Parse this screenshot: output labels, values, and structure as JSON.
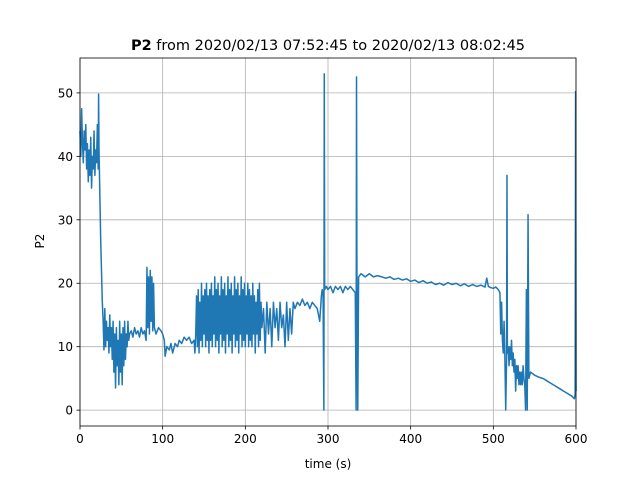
{
  "chart_data": {
    "type": "line",
    "title_bold": "P2",
    "title_rest": " from 2020/02/13 07:52:45 to 2020/02/13 08:02:45",
    "xlabel": "time (s)",
    "ylabel": "P2",
    "xlim": [
      0,
      600
    ],
    "ylim": [
      -2.5,
      55.5
    ],
    "xticks": [
      0,
      100,
      200,
      300,
      400,
      500,
      600
    ],
    "yticks": [
      0,
      10,
      20,
      30,
      40,
      50
    ],
    "grid": true,
    "line_color": "#1f77b4",
    "series": [
      {
        "points": [
          [
            0,
            44
          ],
          [
            1,
            40
          ],
          [
            2,
            47.5
          ],
          [
            3,
            42
          ],
          [
            4,
            39
          ],
          [
            5,
            44
          ],
          [
            6,
            41
          ],
          [
            7,
            45
          ],
          [
            8,
            38
          ],
          [
            9,
            42
          ],
          [
            10,
            36
          ],
          [
            11,
            41
          ],
          [
            12,
            37
          ],
          [
            13,
            43
          ],
          [
            14,
            35
          ],
          [
            15,
            40
          ],
          [
            16,
            38
          ],
          [
            17,
            44
          ],
          [
            18,
            37
          ],
          [
            19,
            41
          ],
          [
            20,
            39
          ],
          [
            21,
            45
          ],
          [
            22,
            38
          ],
          [
            22.5,
            49.8
          ],
          [
            23,
            41
          ],
          [
            24,
            34
          ],
          [
            25,
            27
          ],
          [
            26,
            22
          ],
          [
            27,
            17
          ],
          [
            28,
            14
          ],
          [
            29,
            9.5
          ],
          [
            30,
            16
          ],
          [
            31,
            10
          ],
          [
            32,
            14
          ],
          [
            33,
            11
          ],
          [
            34,
            13
          ],
          [
            35,
            9
          ],
          [
            36,
            15
          ],
          [
            37,
            10
          ],
          [
            38,
            13
          ],
          [
            39,
            8
          ],
          [
            40,
            14
          ],
          [
            41,
            6
          ],
          [
            42,
            12
          ],
          [
            43,
            3.5
          ],
          [
            44,
            13
          ],
          [
            45,
            7
          ],
          [
            46,
            11
          ],
          [
            47,
            4
          ],
          [
            48,
            14
          ],
          [
            49,
            6
          ],
          [
            50,
            12
          ],
          [
            51,
            4
          ],
          [
            52,
            13
          ],
          [
            53,
            7
          ],
          [
            54,
            14
          ],
          [
            55,
            8
          ],
          [
            56,
            12
          ],
          [
            57,
            10
          ],
          [
            58,
            14
          ],
          [
            59,
            11
          ],
          [
            60,
            12
          ],
          [
            62,
            12.5
          ],
          [
            64,
            11.5
          ],
          [
            66,
            13
          ],
          [
            68,
            12
          ],
          [
            70,
            12.5
          ],
          [
            72,
            11.5
          ],
          [
            74,
            13
          ],
          [
            76,
            12
          ],
          [
            78,
            12.5
          ],
          [
            80,
            11
          ],
          [
            81,
            22.5
          ],
          [
            82,
            13
          ],
          [
            83,
            21
          ],
          [
            84,
            12
          ],
          [
            85,
            22
          ],
          [
            86,
            14
          ],
          [
            87,
            21
          ],
          [
            88,
            12.5
          ],
          [
            89,
            20
          ],
          [
            90,
            13
          ],
          [
            92,
            12
          ],
          [
            95,
            13
          ],
          [
            98,
            12.5
          ],
          [
            100,
            12
          ],
          [
            102,
            11
          ],
          [
            103,
            8.5
          ],
          [
            105,
            10
          ],
          [
            108,
            9.5
          ],
          [
            110,
            10.5
          ],
          [
            112,
            9
          ],
          [
            115,
            10.5
          ],
          [
            118,
            10
          ],
          [
            120,
            11
          ],
          [
            123,
            10.5
          ],
          [
            126,
            11.5
          ],
          [
            129,
            11
          ],
          [
            132,
            11.5
          ],
          [
            135,
            10.5
          ],
          [
            138,
            11
          ],
          [
            139,
            9
          ],
          [
            140,
            12
          ],
          [
            141,
            18
          ],
          [
            142,
            10
          ],
          [
            143,
            19
          ],
          [
            144,
            9
          ],
          [
            145,
            17
          ],
          [
            146,
            11
          ],
          [
            147,
            20
          ],
          [
            148,
            10
          ],
          [
            149,
            18
          ],
          [
            150,
            12
          ],
          [
            151,
            19
          ],
          [
            152,
            10
          ],
          [
            153,
            20
          ],
          [
            154,
            11
          ],
          [
            155,
            18
          ],
          [
            156,
            9
          ],
          [
            157,
            19
          ],
          [
            158,
            11
          ],
          [
            159,
            20
          ],
          [
            160,
            10
          ],
          [
            161,
            18
          ],
          [
            162,
            12
          ],
          [
            163,
            21
          ],
          [
            164,
            10
          ],
          [
            165,
            19
          ],
          [
            166,
            11
          ],
          [
            167,
            20
          ],
          [
            168,
            9
          ],
          [
            169,
            18
          ],
          [
            170,
            12
          ],
          [
            171,
            21
          ],
          [
            172,
            10
          ],
          [
            173,
            19
          ],
          [
            174,
            11
          ],
          [
            175,
            20
          ],
          [
            176,
            9
          ],
          [
            177,
            18
          ],
          [
            178,
            12
          ],
          [
            179,
            21
          ],
          [
            180,
            10
          ],
          [
            181,
            19
          ],
          [
            182,
            11
          ],
          [
            183,
            20
          ],
          [
            184,
            9
          ],
          [
            185,
            18
          ],
          [
            186,
            12
          ],
          [
            187,
            21
          ],
          [
            188,
            10
          ],
          [
            189,
            19
          ],
          [
            190,
            11
          ],
          [
            191,
            20
          ],
          [
            192,
            9
          ],
          [
            193,
            18
          ],
          [
            194,
            12
          ],
          [
            195,
            21
          ],
          [
            196,
            10
          ],
          [
            197,
            19
          ],
          [
            198,
            11
          ],
          [
            199,
            20
          ],
          [
            200,
            10
          ],
          [
            201,
            18
          ],
          [
            202,
            12
          ],
          [
            203,
            20
          ],
          [
            204,
            10
          ],
          [
            205,
            19
          ],
          [
            206,
            11
          ],
          [
            207,
            18
          ],
          [
            208,
            10
          ],
          [
            209,
            20
          ],
          [
            210,
            12
          ],
          [
            211,
            18
          ],
          [
            212,
            9
          ],
          [
            213,
            17
          ],
          [
            214,
            12
          ],
          [
            215,
            19
          ],
          [
            216,
            10
          ],
          [
            217,
            20
          ],
          [
            218,
            11
          ],
          [
            219,
            17
          ],
          [
            220,
            13
          ],
          [
            222,
            16
          ],
          [
            224,
            9
          ],
          [
            226,
            17
          ],
          [
            228,
            12
          ],
          [
            230,
            16
          ],
          [
            232,
            10
          ],
          [
            234,
            17
          ],
          [
            236,
            13
          ],
          [
            238,
            16
          ],
          [
            240,
            11
          ],
          [
            242,
            17
          ],
          [
            244,
            13
          ],
          [
            246,
            15
          ],
          [
            248,
            10
          ],
          [
            250,
            17
          ],
          [
            252,
            11
          ],
          [
            254,
            16
          ],
          [
            256,
            12
          ],
          [
            258,
            17
          ],
          [
            260,
            16
          ],
          [
            263,
            17
          ],
          [
            266,
            16.5
          ],
          [
            269,
            17.5
          ],
          [
            272,
            16.5
          ],
          [
            275,
            17
          ],
          [
            278,
            16
          ],
          [
            281,
            17
          ],
          [
            284,
            16.5
          ],
          [
            287,
            16
          ],
          [
            290,
            14
          ],
          [
            292,
            18
          ],
          [
            293,
            19
          ],
          [
            294,
            18.5
          ],
          [
            295,
            0
          ],
          [
            295.5,
            53
          ],
          [
            296,
            19
          ],
          [
            298,
            19.5
          ],
          [
            300,
            19
          ],
          [
            303,
            19.5
          ],
          [
            306,
            18.5
          ],
          [
            309,
            19.5
          ],
          [
            312,
            19
          ],
          [
            315,
            19.5
          ],
          [
            318,
            18.5
          ],
          [
            321,
            19.5
          ],
          [
            324,
            19
          ],
          [
            327,
            19.5
          ],
          [
            330,
            19
          ],
          [
            333,
            18.5
          ],
          [
            334,
            0
          ],
          [
            334.5,
            52.5
          ],
          [
            335,
            21
          ],
          [
            336,
            0
          ],
          [
            337,
            21
          ],
          [
            340,
            21.5
          ],
          [
            345,
            21
          ],
          [
            350,
            21.5
          ],
          [
            355,
            21
          ],
          [
            360,
            21.2
          ],
          [
            365,
            21
          ],
          [
            370,
            20.8
          ],
          [
            375,
            21
          ],
          [
            380,
            20.6
          ],
          [
            385,
            20.8
          ],
          [
            390,
            20.5
          ],
          [
            395,
            20.7
          ],
          [
            400,
            20.3
          ],
          [
            405,
            20.5
          ],
          [
            410,
            20.1
          ],
          [
            415,
            20.4
          ],
          [
            420,
            20
          ],
          [
            425,
            20.2
          ],
          [
            430,
            19.8
          ],
          [
            435,
            20
          ],
          [
            440,
            19.7
          ],
          [
            445,
            20.1
          ],
          [
            450,
            19.8
          ],
          [
            455,
            20
          ],
          [
            460,
            19.6
          ],
          [
            465,
            19.9
          ],
          [
            470,
            19.5
          ],
          [
            475,
            19.8
          ],
          [
            480,
            19.5
          ],
          [
            485,
            19.7
          ],
          [
            490,
            19.4
          ],
          [
            492,
            20.8
          ],
          [
            494,
            19.5
          ],
          [
            497,
            19.3
          ],
          [
            500,
            19.2
          ],
          [
            503,
            19.4
          ],
          [
            506,
            19
          ],
          [
            508,
            18.5
          ],
          [
            509,
            12
          ],
          [
            510,
            17
          ],
          [
            511,
            11
          ],
          [
            512,
            9
          ],
          [
            513,
            14
          ],
          [
            514,
            8
          ],
          [
            515,
            0
          ],
          [
            516,
            8
          ],
          [
            516.5,
            37
          ],
          [
            517,
            9
          ],
          [
            518,
            10
          ],
          [
            519,
            7
          ],
          [
            520,
            10
          ],
          [
            521,
            8
          ],
          [
            522,
            11
          ],
          [
            523,
            7
          ],
          [
            524,
            9
          ],
          [
            525,
            6
          ],
          [
            526,
            8
          ],
          [
            527,
            3
          ],
          [
            528,
            7
          ],
          [
            529,
            5
          ],
          [
            530,
            7
          ],
          [
            531,
            4
          ],
          [
            532,
            6
          ],
          [
            533,
            4
          ],
          [
            534,
            6
          ],
          [
            535,
            4
          ],
          [
            536,
            7
          ],
          [
            537,
            5
          ],
          [
            538,
            4
          ],
          [
            539,
            0
          ],
          [
            540,
            19
          ],
          [
            541,
            0
          ],
          [
            542,
            30.8
          ],
          [
            543,
            5
          ],
          [
            545,
            6
          ],
          [
            550,
            5.5
          ],
          [
            555,
            5.2
          ],
          [
            560,
            5
          ],
          [
            565,
            4.6
          ],
          [
            570,
            4.2
          ],
          [
            575,
            3.8
          ],
          [
            580,
            3.4
          ],
          [
            585,
            3
          ],
          [
            590,
            2.6
          ],
          [
            595,
            2.2
          ],
          [
            598,
            1.8
          ],
          [
            599,
            2.5
          ],
          [
            599.5,
            50.2
          ],
          [
            600,
            3
          ]
        ]
      }
    ]
  }
}
